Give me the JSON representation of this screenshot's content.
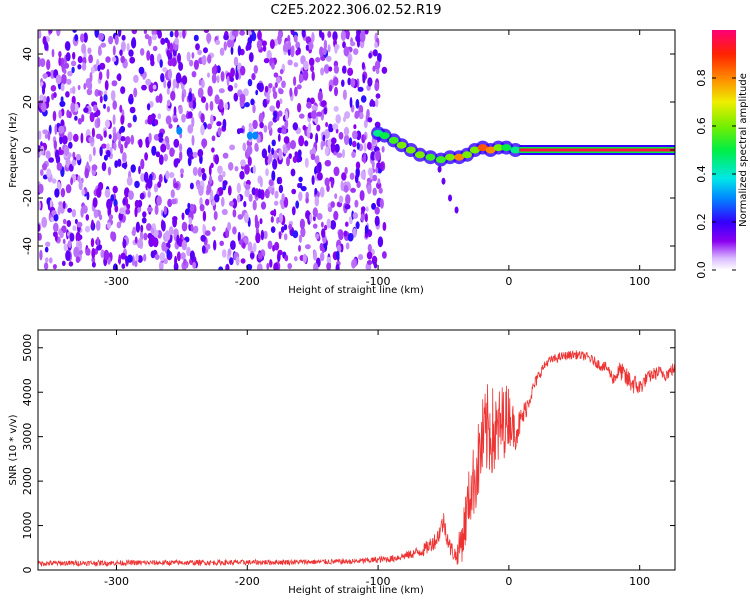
{
  "title": "C2E5.2022.306.02.52.R19",
  "chart_data": [
    {
      "type": "heatmap",
      "title": "C2E5.2022.306.02.52.R19",
      "xlabel": "Height of straight line (km)",
      "ylabel": "Frequency (Hz)",
      "xlim": [
        -360,
        127
      ],
      "ylim": [
        -50,
        50
      ],
      "xticks": [
        -300,
        -200,
        -100,
        0,
        100
      ],
      "yticks": [
        -40,
        -20,
        0,
        20,
        40
      ],
      "noise_region": {
        "x_range": [
          -360,
          -95
        ],
        "level": 0.2
      },
      "ridge": [
        {
          "x": -100,
          "y": 7,
          "v": 0.45
        },
        {
          "x": -95,
          "y": 6,
          "v": 0.5
        },
        {
          "x": -88,
          "y": 4,
          "v": 0.55
        },
        {
          "x": -82,
          "y": 2,
          "v": 0.6
        },
        {
          "x": -75,
          "y": 0,
          "v": 0.6
        },
        {
          "x": -68,
          "y": -2,
          "v": 0.6
        },
        {
          "x": -60,
          "y": -3,
          "v": 0.55
        },
        {
          "x": -52,
          "y": -4,
          "v": 0.55
        },
        {
          "x": -45,
          "y": -3,
          "v": 0.6
        },
        {
          "x": -38,
          "y": -3,
          "v": 0.8
        },
        {
          "x": -32,
          "y": -2,
          "v": 0.6
        },
        {
          "x": -26,
          "y": 0,
          "v": 0.6
        },
        {
          "x": -20,
          "y": 1,
          "v": 0.85
        },
        {
          "x": -14,
          "y": 0,
          "v": 0.8
        },
        {
          "x": -8,
          "y": 1,
          "v": 0.6
        },
        {
          "x": -2,
          "y": 1,
          "v": 0.5
        },
        {
          "x": 5,
          "y": 0,
          "v": 0.45
        }
      ],
      "spur": [
        {
          "x": -53,
          "y": -8
        },
        {
          "x": -50,
          "y": -13
        },
        {
          "x": -45,
          "y": -20
        },
        {
          "x": -40,
          "y": -25
        }
      ],
      "carrier": {
        "x_start": 8,
        "x_end": 127,
        "y": 0,
        "v": 0.95
      },
      "colorbar": {
        "label": "Normalized spectral amplitude",
        "range": [
          0.0,
          1.0
        ],
        "ticks": [
          0.0,
          0.2,
          0.4,
          0.6,
          0.8
        ]
      }
    },
    {
      "type": "line",
      "xlabel": "Height of straight line (km)",
      "ylabel": "SNR (10 * v/v)",
      "xlim": [
        -360,
        127
      ],
      "ylim": [
        0,
        5400
      ],
      "xticks": [
        -300,
        -200,
        -100,
        0,
        100
      ],
      "yticks": [
        0,
        1000,
        2000,
        3000,
        4000,
        5000
      ],
      "series": [
        {
          "name": "SNR",
          "color": "#ee3333",
          "x": [
            -360,
            -300,
            -200,
            -120,
            -90,
            -75,
            -65,
            -55,
            -50,
            -45,
            -40,
            -35,
            -30,
            -25,
            -20,
            -15,
            -10,
            -5,
            0,
            5,
            10,
            15,
            20,
            25,
            30,
            40,
            50,
            60,
            70,
            75,
            80,
            85,
            90,
            95,
            100,
            105,
            110,
            115,
            120,
            127
          ],
          "values": [
            150,
            160,
            170,
            190,
            250,
            350,
            450,
            700,
            1100,
            500,
            300,
            800,
            1700,
            2200,
            2900,
            3200,
            3000,
            3300,
            3500,
            3100,
            3400,
            3800,
            4200,
            4500,
            4700,
            4800,
            4850,
            4800,
            4600,
            4550,
            4300,
            4500,
            4300,
            4200,
            4100,
            4300,
            4400,
            4450,
            4400,
            4550
          ],
          "noise": [
            60,
            60,
            60,
            60,
            80,
            100,
            150,
            200,
            250,
            200,
            200,
            600,
            700,
            900,
            1000,
            1100,
            1000,
            900,
            700,
            400,
            300,
            200,
            150,
            120,
            100,
            100,
            100,
            100,
            120,
            120,
            150,
            200,
            250,
            250,
            200,
            150,
            150,
            150,
            150,
            150
          ]
        }
      ]
    }
  ]
}
